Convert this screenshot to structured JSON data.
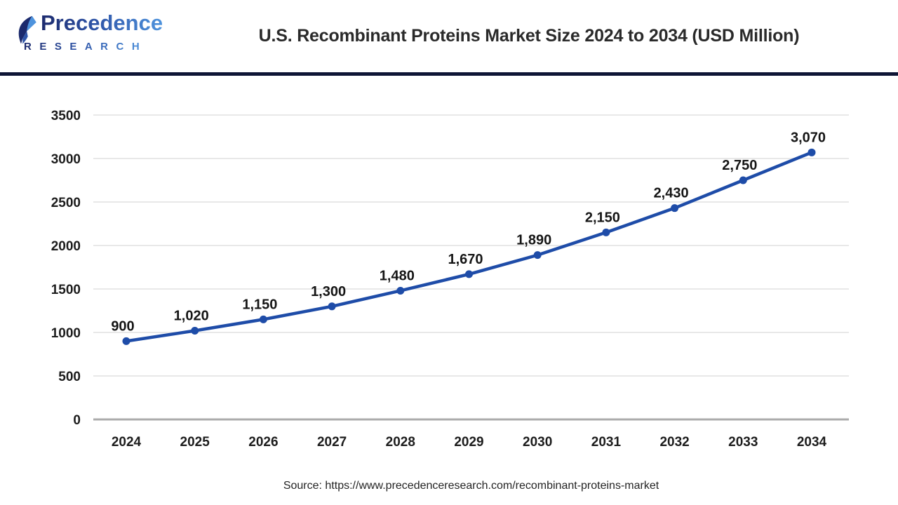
{
  "header": {
    "logo": {
      "name": "Precedence",
      "subtitle": "RESEARCH"
    },
    "title": "U.S. Recombinant Proteins Market Size 2024 to 2034 (USD Million)"
  },
  "chart_data": {
    "type": "line",
    "title": "U.S. Recombinant Proteins Market Size 2024 to 2034 (USD Million)",
    "categories": [
      "2024",
      "2025",
      "2026",
      "2027",
      "2028",
      "2029",
      "2030",
      "2031",
      "2032",
      "2033",
      "2034"
    ],
    "series": [
      {
        "name": "U.S. Recombinant Proteins Market Size (USD Million)",
        "values": [
          900,
          1020,
          1150,
          1300,
          1480,
          1670,
          1890,
          2150,
          2430,
          2750,
          3070
        ]
      }
    ],
    "value_labels": [
      "900",
      "1,020",
      "1,150",
      "1,300",
      "1,480",
      "1,670",
      "1,890",
      "2,150",
      "2,430",
      "2,750",
      "3,070"
    ],
    "xlabel": "",
    "ylabel": "",
    "ylim": [
      0,
      3500
    ],
    "ytick_step": 500,
    "yticks": [
      "0",
      "500",
      "1000",
      "1500",
      "2000",
      "2500",
      "3000",
      "3500"
    ],
    "grid": "horizontal",
    "legend": "none",
    "line_color": "#1e4ca8",
    "marker": "circle"
  },
  "footer": {
    "source": "Source: https://www.precedenceresearch.com/recombinant-proteins-market"
  },
  "colors": {
    "accent_line": "#1e4ca8",
    "divider_navy": "#0e1535",
    "logo_navy": "#1c2a6d",
    "logo_blue": "#4e93dd",
    "grid_line": "#e8e8e8",
    "axis_line": "#ababab",
    "text_dark": "#1c1c1c"
  }
}
